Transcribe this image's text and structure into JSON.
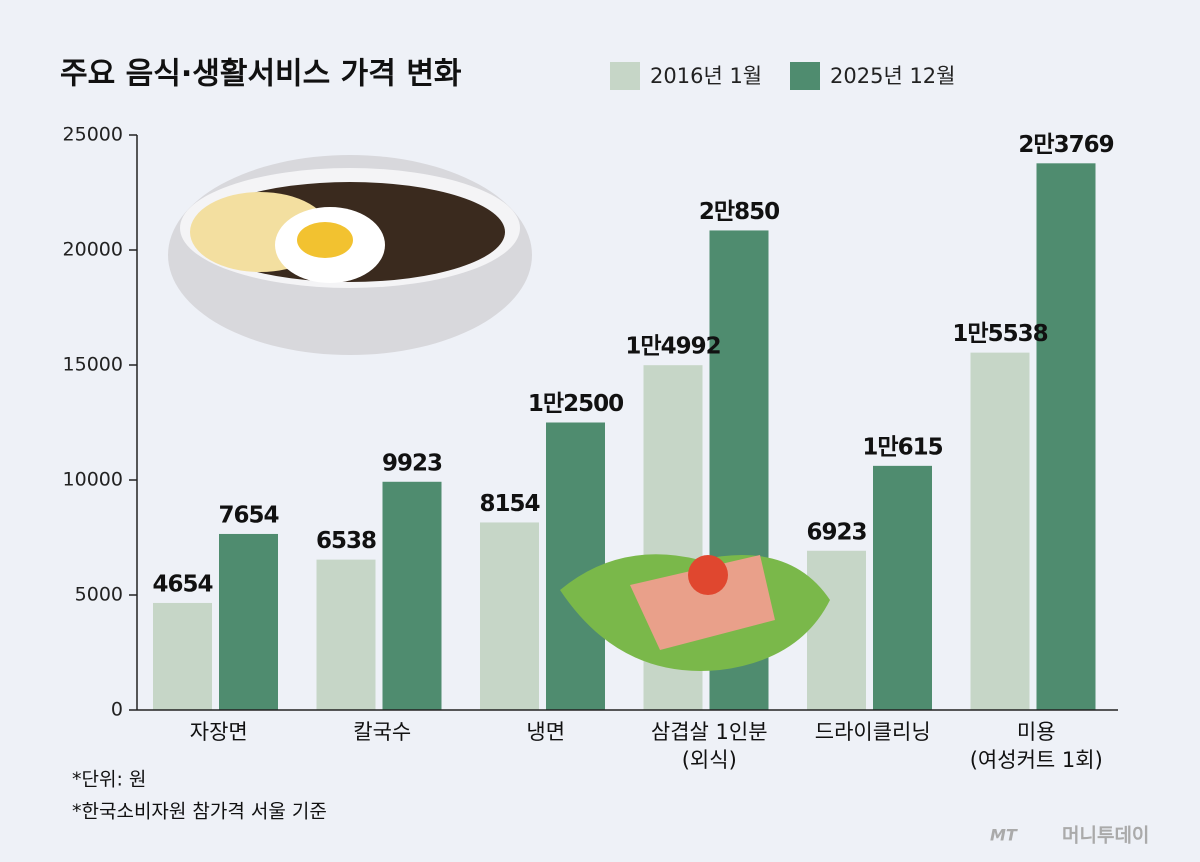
{
  "chart_data": {
    "type": "bar",
    "title": "주요 음식·생활서비스 가격 변화",
    "categories": [
      "자장면",
      "칼국수",
      "냉면",
      "삼겹살 1인분\n(외식)",
      "드라이클리닝",
      "미용\n(여성커트 1회)"
    ],
    "series": [
      {
        "name": "2016년 1월",
        "color": "#c6d6c7",
        "values": [
          4654,
          6538,
          8154,
          14992,
          6923,
          15538
        ],
        "value_labels": [
          "4654",
          "6538",
          "8154",
          "1만4992",
          "6923",
          "1만5538"
        ]
      },
      {
        "name": "2025년 12월",
        "color": "#4f8c6f",
        "values": [
          7654,
          9923,
          12500,
          20850,
          10615,
          23769
        ],
        "value_labels": [
          "7654",
          "9923",
          "1만2500",
          "2만850",
          "1만615",
          "2만3769"
        ]
      }
    ],
    "ylim": [
      0,
      25000
    ],
    "yticks": [
      0,
      5000,
      10000,
      15000,
      20000,
      25000
    ],
    "notes": [
      "*단위: 원",
      "*한국소비자원 참가격 서울 기준"
    ],
    "source": [
      "MT",
      "머니투데이"
    ]
  }
}
